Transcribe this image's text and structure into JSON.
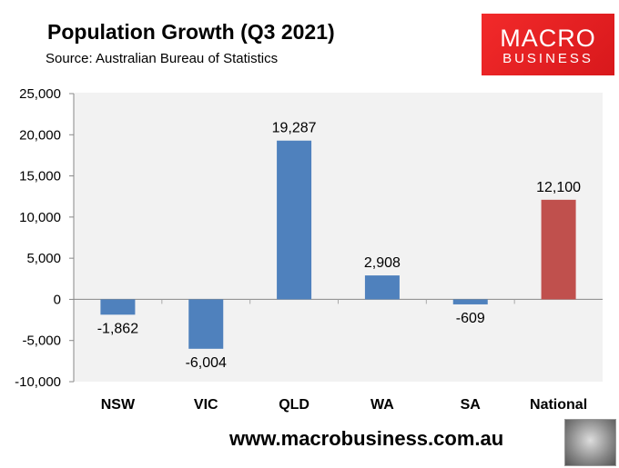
{
  "chart_data": {
    "type": "bar",
    "title": "Population Growth (Q3 2021)",
    "subtitle": "Source: Australian Bureau of Statistics",
    "categories": [
      "NSW",
      "VIC",
      "QLD",
      "WA",
      "SA",
      "National"
    ],
    "values": [
      -1862,
      -6004,
      19287,
      2908,
      -609,
      12100
    ],
    "value_labels": [
      "-1,862",
      "-6,004",
      "19,287",
      "2,908",
      "-609",
      "12,100"
    ],
    "ylim": [
      -10000,
      25000
    ],
    "yticks": [
      25000,
      20000,
      15000,
      10000,
      5000,
      0,
      -5000,
      -10000
    ],
    "ytick_labels": [
      "25,000",
      "20,000",
      "15,000",
      "10,000",
      "5,000",
      "0",
      "-5,000",
      "-10,000"
    ],
    "grid": false,
    "colors": {
      "states": "#4f81bd",
      "National": "#c0504d",
      "plot_bg": "#f2f2f2"
    }
  },
  "branding": {
    "logo_line1": "MACRO",
    "logo_line2": "BUSINESS",
    "url": "www.macrobusiness.com.au",
    "logo_color": "#e8201f"
  }
}
